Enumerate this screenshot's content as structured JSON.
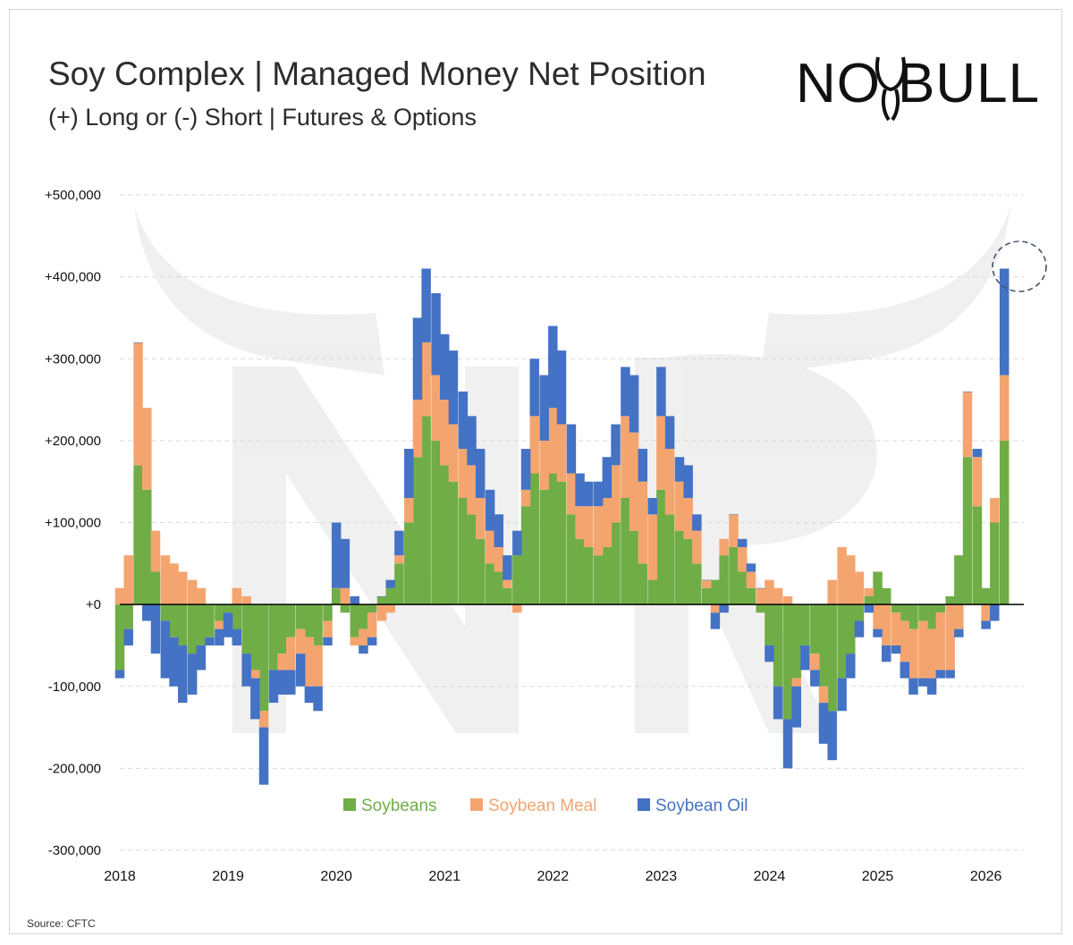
{
  "header": {
    "title": "Soy Complex | Managed Money Net Position",
    "subtitle": "(+) Long or (-) Short | Futures & Options"
  },
  "brand": {
    "logo_text_left": "NO",
    "logo_text_right": "BULL"
  },
  "footer": {
    "source": "Source: CFTC"
  },
  "colors": {
    "soybeans": "#70ad47",
    "meal": "#f4a56f",
    "oil": "#4472c4",
    "grid": "#d9d9d9"
  },
  "chart_data": {
    "type": "area",
    "title": "Soy Complex | Managed Money Net Position",
    "subtitle": "(+) Long or (-) Short | Futures & Options",
    "stacked": true,
    "xlabel": "",
    "ylabel": "",
    "xlim": [
      2018,
      2026.35
    ],
    "ylim": [
      -300000,
      500000
    ],
    "yticks": [
      500000,
      400000,
      300000,
      200000,
      100000,
      0,
      -100000,
      -200000,
      -300000
    ],
    "ytick_labels": [
      "+500,000",
      "+400,000",
      "+300,000",
      "+200,000",
      "+100,000",
      "+0",
      "-100,000",
      "-200,000",
      "-300,000"
    ],
    "xticks": [
      2018,
      2019,
      2020,
      2021,
      2022,
      2023,
      2024,
      2025,
      2026
    ],
    "xtick_labels": [
      "2018",
      "2019",
      "2020",
      "2021",
      "2022",
      "2023",
      "2024",
      "2025",
      "2026"
    ],
    "legend": [
      "Soybeans",
      "Soybean Meal",
      "Soybean Oil"
    ],
    "legend_position": "bottom-center",
    "annotation": "dashed circle highlighting latest peak near +410,000",
    "x": [
      2018.0,
      2018.08,
      2018.17,
      2018.25,
      2018.33,
      2018.42,
      2018.5,
      2018.58,
      2018.67,
      2018.75,
      2018.83,
      2018.92,
      2019.0,
      2019.08,
      2019.17,
      2019.25,
      2019.33,
      2019.42,
      2019.5,
      2019.58,
      2019.67,
      2019.75,
      2019.83,
      2019.92,
      2020.0,
      2020.08,
      2020.17,
      2020.25,
      2020.33,
      2020.42,
      2020.5,
      2020.58,
      2020.67,
      2020.75,
      2020.83,
      2020.92,
      2021.0,
      2021.08,
      2021.17,
      2021.25,
      2021.33,
      2021.42,
      2021.5,
      2021.58,
      2021.67,
      2021.75,
      2021.83,
      2021.92,
      2022.0,
      2022.08,
      2022.17,
      2022.25,
      2022.33,
      2022.42,
      2022.5,
      2022.58,
      2022.67,
      2022.75,
      2022.83,
      2022.92,
      2023.0,
      2023.08,
      2023.17,
      2023.25,
      2023.33,
      2023.42,
      2023.5,
      2023.58,
      2023.67,
      2023.75,
      2023.83,
      2023.92,
      2024.0,
      2024.08,
      2024.17,
      2024.25,
      2024.33,
      2024.42,
      2024.5,
      2024.58,
      2024.67,
      2024.75,
      2024.83,
      2024.92,
      2025.0,
      2025.08,
      2025.17,
      2025.25,
      2025.33,
      2025.42,
      2025.5,
      2025.58,
      2025.67,
      2025.75,
      2025.83,
      2025.92,
      2026.0,
      2026.08,
      2026.17
    ],
    "series": [
      {
        "name": "Soybeans",
        "values": [
          -80000,
          -30000,
          170000,
          140000,
          40000,
          -20000,
          -40000,
          -50000,
          -60000,
          -50000,
          -40000,
          -20000,
          -10000,
          -30000,
          -60000,
          -80000,
          -130000,
          -80000,
          -60000,
          -40000,
          -30000,
          -40000,
          -50000,
          -20000,
          20000,
          -10000,
          -40000,
          -30000,
          -10000,
          10000,
          20000,
          50000,
          100000,
          180000,
          230000,
          200000,
          170000,
          150000,
          130000,
          110000,
          80000,
          50000,
          40000,
          20000,
          60000,
          120000,
          160000,
          140000,
          160000,
          150000,
          110000,
          80000,
          70000,
          60000,
          70000,
          100000,
          130000,
          90000,
          50000,
          30000,
          140000,
          110000,
          90000,
          80000,
          50000,
          20000,
          30000,
          60000,
          70000,
          40000,
          20000,
          -10000,
          -50000,
          -100000,
          -140000,
          -90000,
          -50000,
          -60000,
          -100000,
          -130000,
          -90000,
          -60000,
          -20000,
          10000,
          40000,
          20000,
          -10000,
          -20000,
          -30000,
          -20000,
          -30000,
          -10000,
          10000,
          60000,
          180000,
          120000,
          20000,
          100000,
          200000
        ]
      },
      {
        "name": "Soybean Meal",
        "values": [
          20000,
          60000,
          150000,
          100000,
          50000,
          60000,
          50000,
          40000,
          30000,
          20000,
          0,
          -10000,
          0,
          20000,
          10000,
          -10000,
          -20000,
          0,
          -20000,
          -40000,
          -30000,
          -60000,
          -50000,
          -20000,
          0,
          20000,
          -10000,
          -20000,
          -30000,
          -20000,
          -10000,
          10000,
          30000,
          70000,
          90000,
          80000,
          80000,
          70000,
          60000,
          60000,
          50000,
          40000,
          30000,
          10000,
          -10000,
          20000,
          70000,
          60000,
          80000,
          70000,
          50000,
          40000,
          50000,
          60000,
          60000,
          70000,
          100000,
          120000,
          100000,
          80000,
          90000,
          80000,
          60000,
          50000,
          40000,
          10000,
          -10000,
          20000,
          40000,
          30000,
          20000,
          20000,
          30000,
          20000,
          10000,
          -10000,
          0,
          -20000,
          -20000,
          30000,
          70000,
          60000,
          40000,
          10000,
          -30000,
          -50000,
          -40000,
          -50000,
          -60000,
          -70000,
          -60000,
          -70000,
          -80000,
          -30000,
          80000,
          60000,
          -20000,
          30000,
          80000
        ]
      },
      {
        "name": "Soybean Oil",
        "values": [
          -10000,
          -20000,
          0,
          -20000,
          -60000,
          -70000,
          -60000,
          -70000,
          -50000,
          -30000,
          -10000,
          -20000,
          -30000,
          -20000,
          -40000,
          -50000,
          -70000,
          -40000,
          -30000,
          -30000,
          -40000,
          -20000,
          -30000,
          -10000,
          80000,
          60000,
          10000,
          -10000,
          -10000,
          0,
          10000,
          30000,
          60000,
          100000,
          90000,
          100000,
          80000,
          90000,
          70000,
          60000,
          60000,
          50000,
          40000,
          30000,
          30000,
          50000,
          70000,
          80000,
          100000,
          90000,
          60000,
          40000,
          30000,
          30000,
          50000,
          50000,
          60000,
          70000,
          40000,
          20000,
          60000,
          40000,
          30000,
          40000,
          20000,
          0,
          -20000,
          -10000,
          0,
          10000,
          10000,
          0,
          -20000,
          -40000,
          -60000,
          -50000,
          -30000,
          -20000,
          -50000,
          -60000,
          -40000,
          -30000,
          -20000,
          -10000,
          -10000,
          -20000,
          -10000,
          -20000,
          -20000,
          -10000,
          -20000,
          -10000,
          -10000,
          -10000,
          0,
          10000,
          -10000,
          -20000,
          130000
        ]
      }
    ]
  }
}
